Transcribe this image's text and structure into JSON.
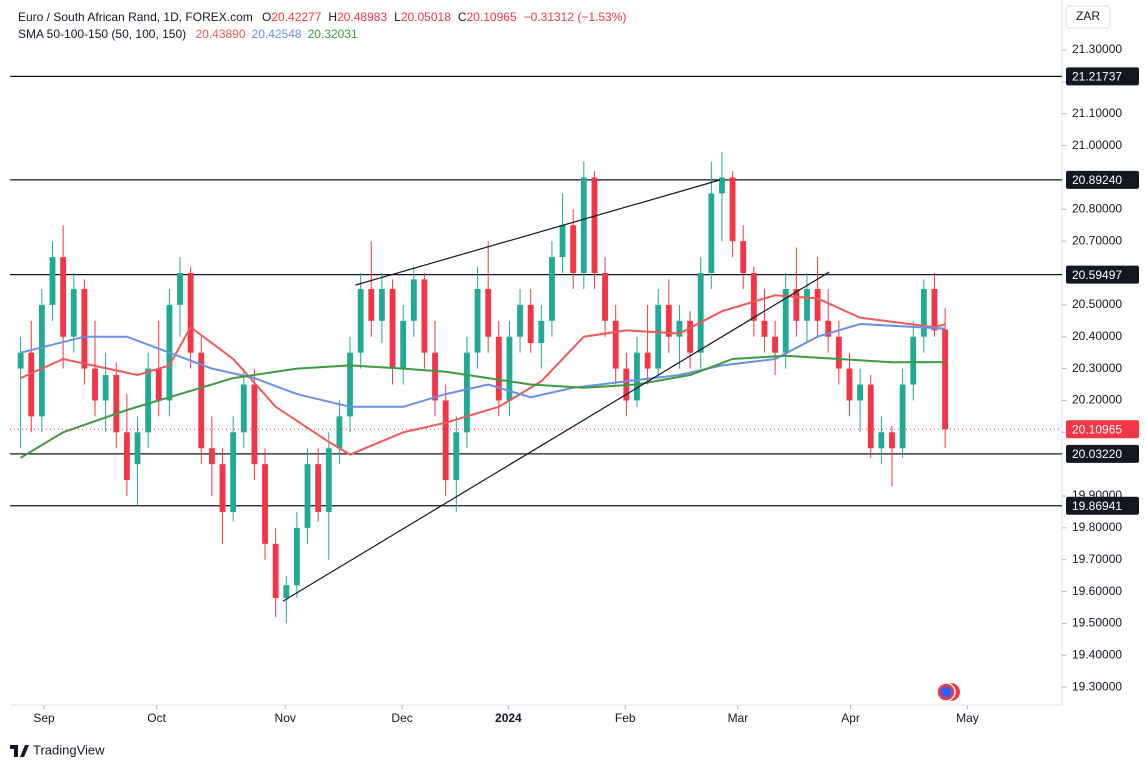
{
  "chart_data": {
    "type": "candlestick",
    "symbol": "Euro / South African Rand, 1D, FOREX.com",
    "ohlc_letters": [
      "O",
      "H",
      "L",
      "C"
    ],
    "change": "−0.31312 (−1.53%)",
    "indicator": "SMA 50-100-150 (50, 100, 150)",
    "currency": "ZAR",
    "footer": "TradingView",
    "up_color": "#22ab94",
    "down_color": "#f23645",
    "ylim": [
      19.244,
      21.457
    ],
    "xlim": [
      -1,
      98
    ],
    "grid": false,
    "yticks": [
      {
        "value": 19.3,
        "label": "19.30000"
      },
      {
        "value": 19.4,
        "label": "19.40000"
      },
      {
        "value": 19.5,
        "label": "19.50000"
      },
      {
        "value": 19.6,
        "label": "19.60000"
      },
      {
        "value": 19.7,
        "label": "19.70000"
      },
      {
        "value": 19.8,
        "label": "19.80000"
      },
      {
        "value": 19.9,
        "label": "19.90000"
      },
      {
        "value": 20.1,
        "label": "20.10000"
      },
      {
        "value": 20.2,
        "label": "20.20000"
      },
      {
        "value": 20.3,
        "label": "20.30000"
      },
      {
        "value": 20.4,
        "label": "20.40000"
      },
      {
        "value": 20.5,
        "label": "20.50000"
      },
      {
        "value": 20.7,
        "label": "20.70000"
      },
      {
        "value": 20.8,
        "label": "20.80000"
      },
      {
        "value": 21,
        "label": "21.00000"
      },
      {
        "value": 21.1,
        "label": "21.10000"
      },
      {
        "value": 21.2,
        "label": "21.20000"
      },
      {
        "value": 21.3,
        "label": "21.30000"
      }
    ],
    "xticks": [
      {
        "value": 2.2,
        "label": "Sep"
      },
      {
        "value": 12.8,
        "label": "Oct"
      },
      {
        "value": 24.9,
        "label": "Nov"
      },
      {
        "value": 35.9,
        "label": "Dec"
      },
      {
        "value": 45.9,
        "label": "2024"
      },
      {
        "value": 56.9,
        "label": "Feb"
      },
      {
        "value": 67.5,
        "label": "Mar"
      },
      {
        "value": 78.1,
        "label": "Apr"
      },
      {
        "value": 89.1,
        "label": "May"
      }
    ],
    "candles": [
      [
        20.3,
        20.4,
        20.05,
        20.35
      ],
      [
        20.35,
        20.45,
        20.1,
        20.15
      ],
      [
        20.15,
        20.55,
        20.1,
        20.5
      ],
      [
        20.5,
        20.7,
        20.45,
        20.65
      ],
      [
        20.65,
        20.75,
        20.3,
        20.4
      ],
      [
        20.4,
        20.6,
        20.35,
        20.55
      ],
      [
        20.55,
        20.58,
        20.25,
        20.3
      ],
      [
        20.3,
        20.45,
        20.15,
        20.2
      ],
      [
        20.2,
        20.35,
        20.1,
        20.28
      ],
      [
        20.28,
        20.32,
        20.05,
        20.1
      ],
      [
        20.1,
        20.22,
        19.9,
        19.95
      ],
      [
        20.0,
        20.15,
        19.87,
        20.1
      ],
      [
        20.1,
        20.35,
        20.05,
        20.3
      ],
      [
        20.3,
        20.45,
        20.15,
        20.2
      ],
      [
        20.2,
        20.55,
        20.15,
        20.5
      ],
      [
        20.5,
        20.65,
        20.4,
        20.6
      ],
      [
        20.6,
        20.62,
        20.3,
        20.35
      ],
      [
        20.35,
        20.4,
        20.0,
        20.05
      ],
      [
        20.05,
        20.15,
        19.9,
        20.0
      ],
      [
        20.0,
        20.05,
        19.75,
        19.85
      ],
      [
        19.85,
        20.15,
        19.82,
        20.1
      ],
      [
        20.1,
        20.3,
        20.05,
        20.25
      ],
      [
        20.25,
        20.3,
        19.95,
        20.0
      ],
      [
        20.0,
        20.05,
        19.7,
        19.75
      ],
      [
        19.75,
        19.8,
        19.52,
        19.58
      ],
      [
        19.58,
        19.65,
        19.5,
        19.62
      ],
      [
        19.62,
        19.85,
        19.58,
        19.8
      ],
      [
        19.8,
        20.05,
        19.75,
        20.0
      ],
      [
        20.0,
        20.05,
        19.82,
        19.85
      ],
      [
        19.85,
        20.1,
        19.7,
        20.05
      ],
      [
        20.05,
        20.2,
        20.0,
        20.15
      ],
      [
        20.15,
        20.4,
        20.1,
        20.35
      ],
      [
        20.35,
        20.6,
        20.3,
        20.55
      ],
      [
        20.55,
        20.7,
        20.4,
        20.45
      ],
      [
        20.45,
        20.6,
        20.38,
        20.55
      ],
      [
        20.55,
        20.58,
        20.25,
        20.3
      ],
      [
        20.3,
        20.5,
        20.25,
        20.45
      ],
      [
        20.45,
        20.62,
        20.4,
        20.58
      ],
      [
        20.58,
        20.6,
        20.3,
        20.35
      ],
      [
        20.35,
        20.45,
        20.15,
        20.2
      ],
      [
        20.2,
        20.25,
        19.9,
        19.95
      ],
      [
        19.95,
        20.15,
        19.85,
        20.1
      ],
      [
        20.1,
        20.4,
        20.05,
        20.35
      ],
      [
        20.35,
        20.62,
        20.3,
        20.55
      ],
      [
        20.55,
        20.7,
        20.35,
        20.4
      ],
      [
        20.4,
        20.45,
        20.15,
        20.2
      ],
      [
        20.2,
        20.45,
        20.15,
        20.4
      ],
      [
        20.4,
        20.55,
        20.35,
        20.5
      ],
      [
        20.5,
        20.55,
        20.35,
        20.38
      ],
      [
        20.38,
        20.5,
        20.3,
        20.45
      ],
      [
        20.45,
        20.7,
        20.4,
        20.65
      ],
      [
        20.65,
        20.85,
        20.6,
        20.75
      ],
      [
        20.75,
        20.8,
        20.55,
        20.6
      ],
      [
        20.6,
        20.95,
        20.55,
        20.9
      ],
      [
        20.9,
        20.92,
        20.55,
        20.6
      ],
      [
        20.6,
        20.65,
        20.4,
        20.45
      ],
      [
        20.45,
        20.5,
        20.25,
        20.3
      ],
      [
        20.3,
        20.35,
        20.15,
        20.2
      ],
      [
        20.2,
        20.4,
        20.18,
        20.35
      ],
      [
        20.35,
        20.5,
        20.25,
        20.3
      ],
      [
        20.3,
        20.55,
        20.28,
        20.5
      ],
      [
        20.5,
        20.58,
        20.35,
        20.4
      ],
      [
        20.4,
        20.5,
        20.3,
        20.45
      ],
      [
        20.45,
        20.48,
        20.3,
        20.35
      ],
      [
        20.35,
        20.65,
        20.3,
        20.6
      ],
      [
        20.6,
        20.95,
        20.55,
        20.85
      ],
      [
        20.85,
        20.98,
        20.7,
        20.9
      ],
      [
        20.9,
        20.92,
        20.65,
        20.7
      ],
      [
        20.7,
        20.75,
        20.55,
        20.6
      ],
      [
        20.6,
        20.62,
        20.4,
        20.45
      ],
      [
        20.45,
        20.55,
        20.35,
        20.4
      ],
      [
        20.4,
        20.45,
        20.28,
        20.35
      ],
      [
        20.35,
        20.6,
        20.3,
        20.55
      ],
      [
        20.55,
        20.68,
        20.4,
        20.45
      ],
      [
        20.45,
        20.6,
        20.38,
        20.55
      ],
      [
        20.55,
        20.65,
        20.4,
        20.45
      ],
      [
        20.45,
        20.55,
        20.35,
        20.4
      ],
      [
        20.4,
        20.45,
        20.25,
        20.3
      ],
      [
        20.3,
        20.35,
        20.15,
        20.2
      ],
      [
        20.2,
        20.3,
        20.1,
        20.25
      ],
      [
        20.25,
        20.28,
        20.02,
        20.05
      ],
      [
        20.05,
        20.15,
        20.0,
        20.1
      ],
      [
        20.1,
        20.12,
        19.93,
        20.05
      ],
      [
        20.05,
        20.3,
        20.02,
        20.25
      ],
      [
        20.25,
        20.45,
        20.2,
        20.4
      ],
      [
        20.4,
        20.58,
        20.35,
        20.55
      ],
      [
        20.55,
        20.6,
        20.4,
        20.42
      ],
      [
        20.42277,
        20.48983,
        20.05018,
        20.10965
      ]
    ],
    "series": [
      {
        "name": "SMA 50",
        "color": "#f0595a",
        "legend_value": "20.43890",
        "x": [
          0,
          4,
          11,
          14,
          16,
          20,
          24,
          29,
          31,
          36,
          40,
          45,
          49,
          53,
          57,
          62,
          66,
          71,
          75,
          79,
          86,
          87
        ],
        "values": [
          20.27,
          20.33,
          20.28,
          20.31,
          20.43,
          20.33,
          20.18,
          20.07,
          20.03,
          20.1,
          20.13,
          20.18,
          20.26,
          20.4,
          20.42,
          20.41,
          20.48,
          20.53,
          20.52,
          20.46,
          20.43,
          20.4389
        ]
      },
      {
        "name": "SMA 100",
        "color": "#6a8fe6",
        "legend_value": "20.42548",
        "x": [
          0,
          6,
          10,
          14,
          18,
          22,
          26,
          31,
          36,
          40,
          44,
          48,
          52,
          57,
          62,
          66,
          71,
          75,
          79,
          87
        ],
        "values": [
          20.35,
          20.4,
          20.4,
          20.35,
          20.3,
          20.27,
          20.22,
          20.18,
          20.18,
          20.22,
          20.25,
          20.21,
          20.24,
          20.26,
          20.28,
          20.31,
          20.33,
          20.4,
          20.44,
          20.42548
        ]
      },
      {
        "name": "SMA 150",
        "color": "#3f9a3f",
        "legend_value": "20.32031",
        "x": [
          0,
          4,
          10,
          15,
          20,
          26,
          31,
          36,
          40,
          44,
          48,
          53,
          58,
          63,
          67,
          72,
          77,
          82,
          87
        ],
        "values": [
          20.02,
          20.1,
          20.17,
          20.22,
          20.27,
          20.3,
          20.31,
          20.3,
          20.29,
          20.27,
          20.25,
          20.24,
          20.25,
          20.28,
          20.33,
          20.34,
          20.33,
          20.32,
          20.32031
        ]
      }
    ],
    "levels": [
      {
        "value": 21.21737,
        "label": "21.21737"
      },
      {
        "value": 20.8924,
        "label": "20.89240"
      },
      {
        "value": 20.59497,
        "label": "20.59497"
      },
      {
        "value": 20.0322,
        "label": "20.03220"
      },
      {
        "value": 19.86941,
        "label": "19.86941"
      }
    ],
    "trendlines": [
      {
        "x": [
          24.7,
          76.1
        ],
        "y": [
          19.57,
          20.603
        ]
      },
      {
        "x": [
          31.5,
          65.8
        ],
        "y": [
          20.562,
          20.892
        ]
      }
    ]
  }
}
